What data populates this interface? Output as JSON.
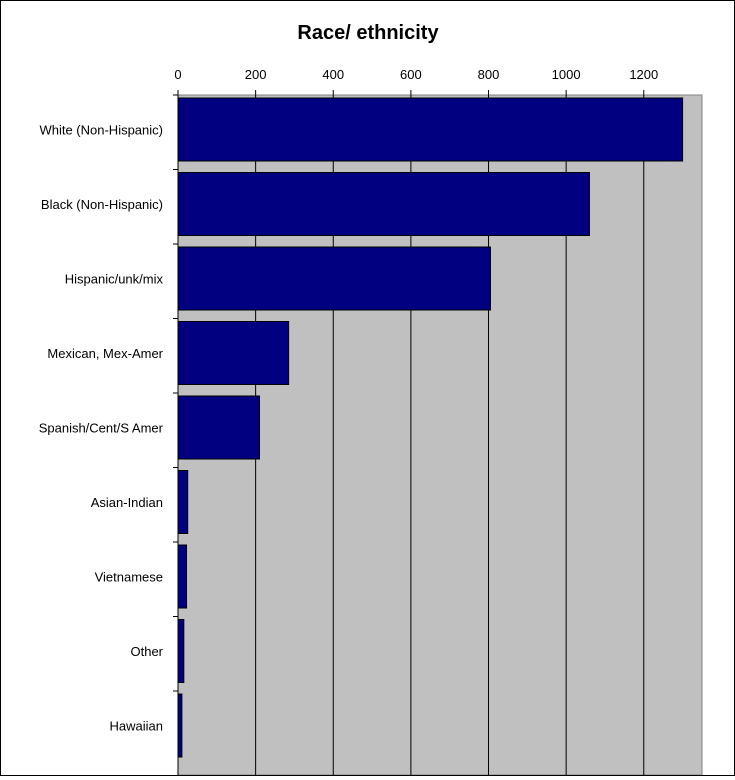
{
  "chart_data": {
    "type": "bar",
    "orientation": "horizontal",
    "title": "Race/ ethnicity",
    "xlabel": "",
    "ylabel": "",
    "categories": [
      "White (Non-Hispanic)",
      "Black (Non-Hispanic)",
      "Hispanic/unk/mix",
      "Mexican, Mex-Amer",
      "Spanish/Cent/S Amer",
      "Asian-Indian",
      "Vietnamese",
      "Other",
      "Hawaiian"
    ],
    "values": [
      1300,
      1060,
      805,
      285,
      210,
      25,
      22,
      15,
      10
    ],
    "xlim": [
      0,
      1350
    ],
    "xticks": [
      "0",
      "200",
      "400",
      "600",
      "800",
      "1000",
      "1200"
    ],
    "xtick_values": [
      0,
      200,
      400,
      600,
      800,
      1000,
      1200
    ],
    "grid": "vertical",
    "legend": "none",
    "colors": {
      "bar_fill": "#000080",
      "plot_background": "#c0c0c0",
      "gridline": "#000000"
    }
  }
}
